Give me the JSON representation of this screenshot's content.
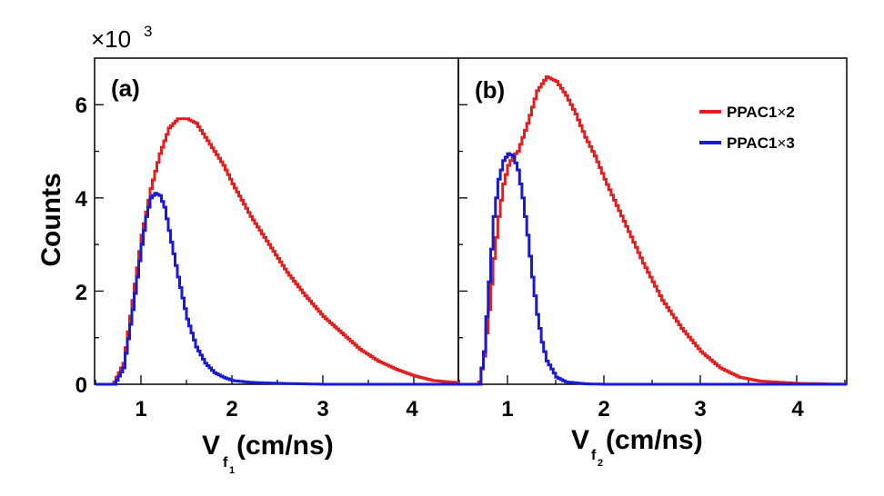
{
  "chart_data": {
    "type": "line",
    "y_multiplier": {
      "base": "×10",
      "exponent": "3"
    },
    "ylabel": "Counts",
    "ylim": [
      0,
      7
    ],
    "yticks": [
      "0",
      "2",
      "4",
      "6"
    ],
    "xlim": [
      0.5,
      4.5
    ],
    "xticks": [
      "1",
      "2",
      "3",
      "4"
    ],
    "series_styles": [
      {
        "name": "PPAC1×2",
        "label_main": "PPAC1",
        "label_tail": "2",
        "color": "#e02020"
      },
      {
        "name": "PPAC1×3",
        "label_main": "PPAC1",
        "label_tail": "3",
        "color": "#1a1ad0"
      }
    ],
    "panels": [
      {
        "label": "(a)",
        "xlabel_main": "V",
        "xlabel_sub": "f",
        "xlabel_subsub": "1",
        "xlabel_unit": " (cm/ns)",
        "series": [
          {
            "name": "PPAC1×2",
            "x": [
              0.7,
              0.8,
              0.9,
              1.0,
              1.1,
              1.2,
              1.3,
              1.4,
              1.5,
              1.6,
              1.7,
              1.8,
              1.9,
              2.0,
              2.2,
              2.4,
              2.6,
              2.8,
              3.0,
              3.2,
              3.4,
              3.6,
              3.8,
              4.0,
              4.2,
              4.5
            ],
            "y": [
              0.05,
              0.45,
              1.8,
              3.2,
              4.2,
              4.95,
              5.5,
              5.7,
              5.7,
              5.6,
              5.3,
              5.0,
              4.7,
              4.3,
              3.6,
              3.0,
              2.4,
              1.9,
              1.45,
              1.1,
              0.75,
              0.5,
              0.32,
              0.18,
              0.08,
              0.03
            ]
          },
          {
            "name": "PPAC1×3",
            "x": [
              0.7,
              0.8,
              0.9,
              1.0,
              1.05,
              1.1,
              1.15,
              1.2,
              1.25,
              1.3,
              1.4,
              1.5,
              1.6,
              1.7,
              1.8,
              1.9,
              2.0,
              2.2,
              2.5,
              3.0,
              4.5
            ],
            "y": [
              0.0,
              0.35,
              1.6,
              3.0,
              3.6,
              4.0,
              4.1,
              4.05,
              3.8,
              3.3,
              2.3,
              1.4,
              0.8,
              0.45,
              0.25,
              0.15,
              0.08,
              0.04,
              0.02,
              0.0,
              0.0
            ]
          }
        ]
      },
      {
        "label": "(b)",
        "xlabel_main": "V",
        "xlabel_sub": "f",
        "xlabel_subsub": "2",
        "xlabel_unit": "(cm/ns)",
        "series": [
          {
            "name": "PPAC1×2",
            "x": [
              0.7,
              0.75,
              0.8,
              0.85,
              0.9,
              0.95,
              1.0,
              1.05,
              1.1,
              1.2,
              1.3,
              1.4,
              1.5,
              1.6,
              1.7,
              1.8,
              1.9,
              2.0,
              2.2,
              2.4,
              2.6,
              2.8,
              3.0,
              3.2,
              3.4,
              3.6,
              4.0,
              4.5
            ],
            "y": [
              0.05,
              0.6,
              1.6,
              2.7,
              3.6,
              4.3,
              4.7,
              4.9,
              5.0,
              5.6,
              6.3,
              6.6,
              6.5,
              6.2,
              5.8,
              5.3,
              4.9,
              4.4,
              3.5,
              2.6,
              1.8,
              1.2,
              0.7,
              0.35,
              0.15,
              0.07,
              0.02,
              0.0
            ]
          },
          {
            "name": "PPAC1×3",
            "x": [
              0.7,
              0.75,
              0.8,
              0.85,
              0.9,
              0.95,
              1.0,
              1.05,
              1.1,
              1.15,
              1.2,
              1.25,
              1.3,
              1.35,
              1.4,
              1.5,
              1.6,
              1.8,
              2.0,
              4.5
            ],
            "y": [
              0.0,
              0.7,
              2.2,
              3.6,
              4.4,
              4.8,
              4.95,
              4.9,
              4.6,
              4.0,
              3.2,
              2.3,
              1.5,
              0.9,
              0.5,
              0.15,
              0.05,
              0.01,
              0.0,
              0.0
            ]
          }
        ]
      }
    ]
  }
}
